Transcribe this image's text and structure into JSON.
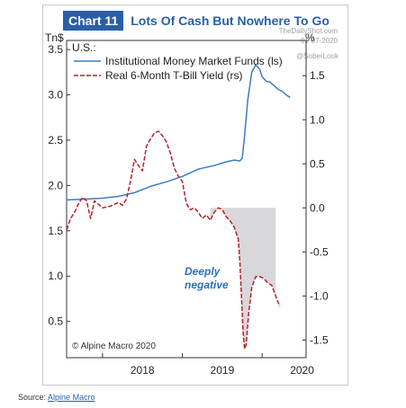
{
  "header": {
    "chart_number": "Chart 11",
    "title": "Lots Of Cash But Nowhere To Go"
  },
  "watermark": {
    "site": "TheDailyShot.com",
    "date": "01-07-2020",
    "handle": "@SoberLook"
  },
  "source": {
    "label": "Source:",
    "link_text": "Alpine Macro"
  },
  "chart_data": {
    "type": "line",
    "title": "Lots Of Cash But Nowhere To Go",
    "region_label": "U.S.:",
    "left_unit": "Tn$",
    "right_unit": "%",
    "copyright": "© Alpine Macro 2020",
    "annotation": "Deeply negative",
    "legend": "top-left",
    "grid": false,
    "x_range": [
      2017.55,
      2020.55
    ],
    "x_ticks": [
      2018,
      2019,
      2020
    ],
    "left_axis": {
      "range": [
        0.1,
        3.6
      ],
      "ticks": [
        0.5,
        1.0,
        1.5,
        2.0,
        2.5,
        3.0,
        3.5
      ]
    },
    "right_axis": {
      "range": [
        -1.7,
        1.9
      ],
      "ticks": [
        -1.5,
        -1.0,
        -0.5,
        0.0,
        0.5,
        1.0,
        1.5
      ]
    },
    "series": [
      {
        "name": "Institutional Money Market Funds (ls)",
        "axis": "left",
        "color": "#3a7cc2",
        "style": "solid",
        "x": [
          2017.55,
          2017.8,
          2018.0,
          2018.2,
          2018.4,
          2018.6,
          2018.8,
          2019.0,
          2019.2,
          2019.4,
          2019.55,
          2019.65,
          2019.72,
          2019.75,
          2019.78,
          2019.82,
          2019.87,
          2019.92,
          2019.97,
          2020.0,
          2020.05,
          2020.1,
          2020.15,
          2020.2,
          2020.25,
          2020.3,
          2020.35
        ],
        "y": [
          1.84,
          1.85,
          1.86,
          1.88,
          1.92,
          1.99,
          2.04,
          2.1,
          2.18,
          2.22,
          2.26,
          2.28,
          2.27,
          2.3,
          2.55,
          2.95,
          3.25,
          3.33,
          3.28,
          3.2,
          3.15,
          3.14,
          3.1,
          3.06,
          3.04,
          3.0,
          2.97
        ]
      },
      {
        "name": "Real 6-Month T-Bill Yield (rs)",
        "axis": "right",
        "color": "#b5222a",
        "style": "dashed",
        "x": [
          2017.55,
          2017.6,
          2017.65,
          2017.7,
          2017.75,
          2017.8,
          2017.85,
          2017.9,
          2018.0,
          2018.1,
          2018.2,
          2018.25,
          2018.3,
          2018.35,
          2018.4,
          2018.45,
          2018.5,
          2018.55,
          2018.6,
          2018.65,
          2018.7,
          2018.75,
          2018.8,
          2018.85,
          2018.9,
          2018.95,
          2019.0,
          2019.05,
          2019.1,
          2019.15,
          2019.2,
          2019.25,
          2019.3,
          2019.35,
          2019.4,
          2019.45,
          2019.5,
          2019.55,
          2019.6,
          2019.65,
          2019.7,
          2019.72,
          2019.74,
          2019.76,
          2019.78,
          2019.8,
          2019.83,
          2019.87,
          2019.92,
          2019.97,
          2020.02,
          2020.07,
          2020.12,
          2020.17,
          2020.22
        ],
        "y": [
          -0.25,
          -0.12,
          -0.05,
          0.05,
          0.12,
          0.08,
          -0.12,
          0.08,
          0.0,
          0.02,
          0.06,
          0.03,
          0.1,
          0.3,
          0.55,
          0.48,
          0.42,
          0.7,
          0.78,
          0.85,
          0.87,
          0.82,
          0.75,
          0.62,
          0.45,
          0.36,
          0.3,
          0.05,
          -0.02,
          0.0,
          -0.05,
          -0.12,
          -0.08,
          -0.14,
          -0.05,
          0.0,
          -0.02,
          -0.1,
          -0.15,
          -0.22,
          -0.35,
          -0.6,
          -1.0,
          -1.4,
          -1.6,
          -1.55,
          -1.2,
          -0.9,
          -0.78,
          -0.78,
          -0.8,
          -0.85,
          -0.88,
          -1.0,
          -1.12
        ]
      }
    ],
    "shaded_region": {
      "x_start": 2019.35,
      "x_end": 2020.17,
      "top_value": 0.0,
      "color": "#d8d8da"
    }
  }
}
